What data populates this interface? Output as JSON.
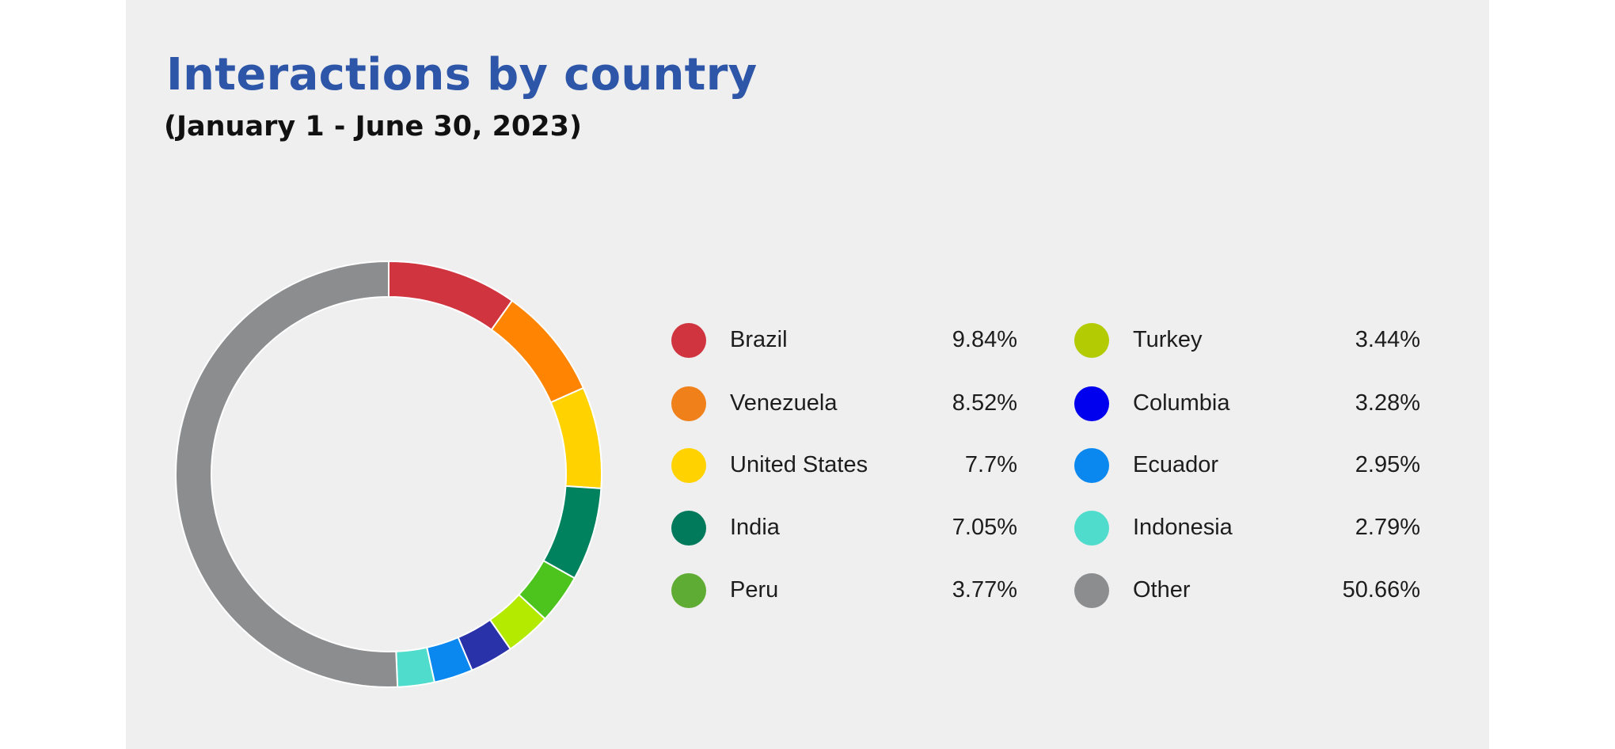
{
  "chart_data": {
    "type": "pie",
    "donut": true,
    "title": "Interactions by country",
    "subtitle": "(January 1 - June 30, 2023)",
    "categories": [
      "Brazil",
      "Venezuela",
      "United States",
      "India",
      "Peru",
      "Turkey",
      "Columbia",
      "Ecuador",
      "Indonesia",
      "Other"
    ],
    "values": [
      9.84,
      8.52,
      7.7,
      7.05,
      3.77,
      3.44,
      3.28,
      2.95,
      2.79,
      50.66
    ],
    "value_labels": [
      "9.84%",
      "8.52%",
      "7.7%",
      "7.05%",
      "3.77%",
      "3.44%",
      "3.28%",
      "2.95%",
      "2.79%",
      "50.66%"
    ],
    "legend_colors": [
      "#d0343f",
      "#f08019",
      "#ffd200",
      "#007a5a",
      "#5fac34",
      "#b2cb02",
      "#0000ee",
      "#0a88f0",
      "#50dccc",
      "#8b8d8f"
    ],
    "slice_colors": [
      "#d0343f",
      "#ff8402",
      "#ffd200",
      "#00825f",
      "#4dc41d",
      "#b4ea00",
      "#2932a8",
      "#0a88f0",
      "#50dccc",
      "#8b8d8f"
    ],
    "legend_placement": "right"
  }
}
